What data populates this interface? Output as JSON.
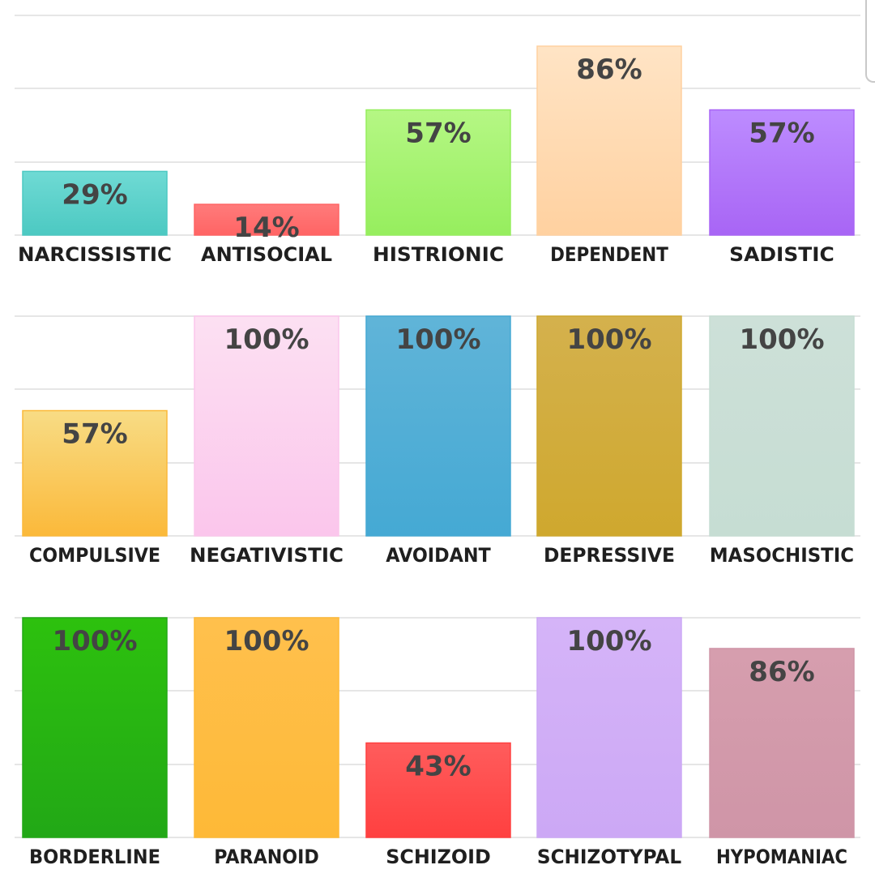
{
  "chart_data": [
    {
      "type": "bar",
      "ylim": [
        0,
        100
      ],
      "grid": true,
      "categories": [
        "NARCISSISTIC",
        "ANTISOCIAL",
        "HISTRIONIC",
        "DEPENDENT",
        "SADISTIC"
      ],
      "values": [
        29,
        14,
        57,
        86,
        57
      ],
      "value_labels": [
        "29%",
        "14%",
        "57%",
        "86%",
        "57%"
      ],
      "colors": [
        [
          "#6fdad4",
          "#4cc9c2"
        ],
        [
          "#ff7b7b",
          "#ff6464"
        ],
        [
          "#b5f784",
          "#96ee5e"
        ],
        [
          "#ffe4c5",
          "#ffd1a0"
        ],
        [
          "#bd8cff",
          "#a865f5"
        ]
      ]
    },
    {
      "type": "bar",
      "ylim": [
        0,
        100
      ],
      "grid": true,
      "categories": [
        "COMPULSIVE",
        "NEGATIVISTIC",
        "AVOIDANT",
        "DEPRESSIVE",
        "MASOCHISTIC"
      ],
      "values": [
        57,
        100,
        100,
        100,
        100
      ],
      "value_labels": [
        "57%",
        "100%",
        "100%",
        "100%",
        "100%"
      ],
      "colors": [
        [
          "#f8dc85",
          "#fbb93a"
        ],
        [
          "#fce0f2",
          "#fbc6ec"
        ],
        [
          "#60b4d8",
          "#45a9d4"
        ],
        [
          "#d4b14d",
          "#cfa82e"
        ],
        [
          "#cde0d8",
          "#c6ddd3"
        ]
      ]
    },
    {
      "type": "bar",
      "ylim": [
        0,
        100
      ],
      "grid": true,
      "categories": [
        "BORDERLINE",
        "PARANOID",
        "SCHIZOID",
        "SCHIZOTYPAL",
        "HYPOMANIAC"
      ],
      "values": [
        100,
        100,
        43,
        100,
        86
      ],
      "value_labels": [
        "100%",
        "100%",
        "43%",
        "100%",
        "86%"
      ],
      "colors": [
        [
          "#2dc10e",
          "#22a816"
        ],
        [
          "#ffc04d",
          "#feb937"
        ],
        [
          "#ff5c5c",
          "#ff4040"
        ],
        [
          "#d5b4f8",
          "#cca8f5"
        ],
        [
          "#d69eae",
          "#cf95a7"
        ]
      ]
    }
  ],
  "style": {
    "grid_color": "#e6e6e6",
    "value_label_color": "#444444",
    "category_label_color": "#1f1f1f"
  }
}
